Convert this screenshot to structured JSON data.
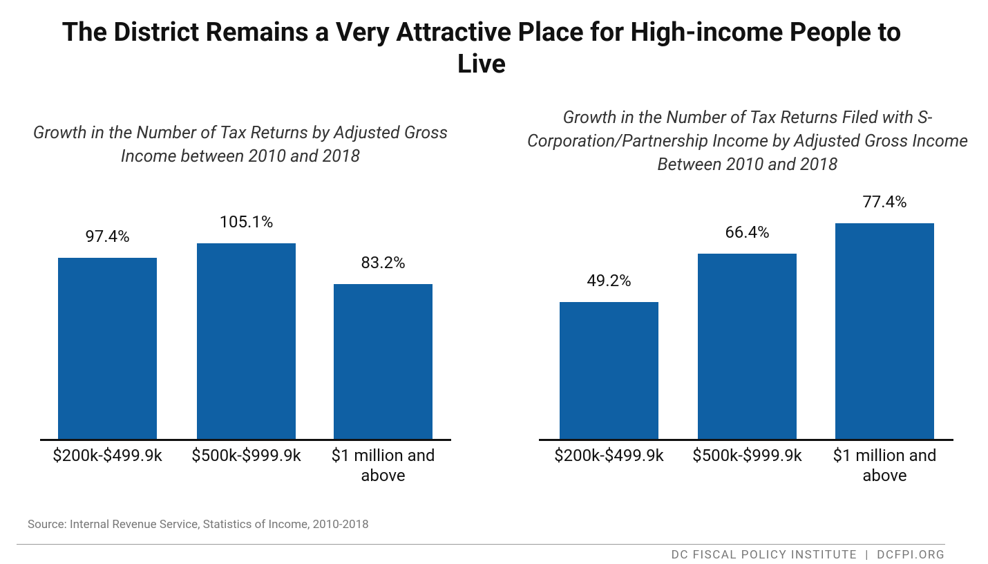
{
  "title": "The District Remains a Very Attractive Place for High-income People to Live",
  "chart_data": [
    {
      "type": "bar",
      "title": "Growth in the Number of Tax Returns by Adjusted Gross Income between 2010 and 2018",
      "categories": [
        "$200k-$499.9k",
        "$500k-$999.9k",
        "$1 million and above"
      ],
      "values": [
        97.4,
        105.1,
        83.2
      ],
      "value_labels": [
        "97.4%",
        "105.1%",
        "83.2%"
      ],
      "color": "#0f60a4"
    },
    {
      "type": "bar",
      "title": "Growth in the Number of Tax Returns Filed with S-Corporation/Partnership Income by Adjusted Gross Income Between 2010 and 2018",
      "categories": [
        "$200k-$499.9k",
        "$500k-$999.9k",
        "$1 million and above"
      ],
      "values": [
        49.2,
        66.4,
        77.4
      ],
      "value_labels": [
        "49.2%",
        "66.4%",
        "77.4%"
      ],
      "color": "#0f60a4"
    }
  ],
  "source": "Source: Internal Revenue Service, Statistics of Income, 2010-2018",
  "footer": "DC FISCAL POLICY INSTITUTE  |  DCFPI.ORG"
}
